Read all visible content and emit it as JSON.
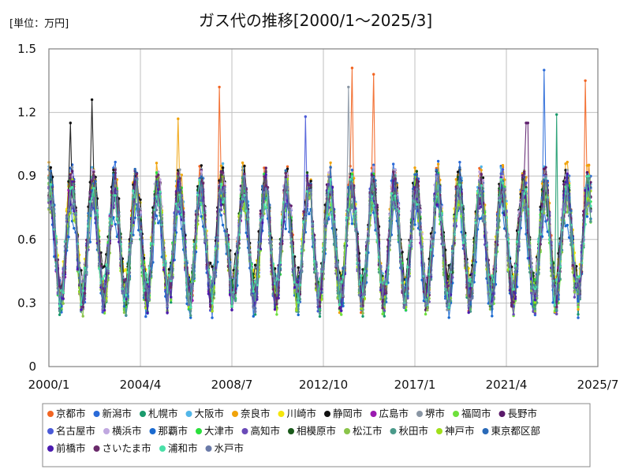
{
  "chart_data": {
    "type": "line",
    "title": "ガス代の推移[2000/1～2025/3]",
    "unit_label": "[単位：万円]",
    "x_range": [
      "2000/1",
      "2025/3"
    ],
    "x_ticks": [
      "2000/1",
      "2004/4",
      "2008/7",
      "2012/10",
      "2017/1",
      "2021/4",
      "2025/7"
    ],
    "y_ticks": [
      "0",
      "0.3",
      "0.6",
      "0.9",
      "1.2",
      "1.5"
    ],
    "ylim": [
      0,
      1.5
    ],
    "grid": true,
    "legend_position": "bottom",
    "series": [
      {
        "name": "京都市",
        "color": "#f26522",
        "base": 0.6,
        "amp": 0.28,
        "phase": 0.2,
        "peaks": [
          [
            2007.9,
            1.32
          ],
          [
            2014.1,
            1.41
          ],
          [
            2015.1,
            1.38
          ],
          [
            2024.9,
            1.35
          ]
        ]
      },
      {
        "name": "新潟市",
        "color": "#2a6ad8",
        "base": 0.6,
        "amp": 0.3,
        "phase": 0.5,
        "peaks": [
          [
            2023.0,
            1.4
          ]
        ]
      },
      {
        "name": "札幌市",
        "color": "#1a9a6c",
        "base": 0.58,
        "amp": 0.27,
        "phase": 0.8,
        "peaks": [
          [
            2023.6,
            1.19
          ]
        ]
      },
      {
        "name": "大阪市",
        "color": "#52b6e8",
        "base": 0.62,
        "amp": 0.27,
        "phase": 1.1,
        "peaks": []
      },
      {
        "name": "奈良市",
        "color": "#f0a30a",
        "base": 0.61,
        "amp": 0.29,
        "phase": 1.4,
        "peaks": [
          [
            2006.0,
            1.17
          ]
        ]
      },
      {
        "name": "川崎市",
        "color": "#f5e60a",
        "base": 0.62,
        "amp": 0.24,
        "phase": 1.7,
        "peaks": []
      },
      {
        "name": "静岡市",
        "color": "#111111",
        "base": 0.64,
        "amp": 0.24,
        "phase": 2.0,
        "peaks": [
          [
            2002.0,
            1.26
          ],
          [
            2001.0,
            1.15
          ]
        ]
      },
      {
        "name": "広島市",
        "color": "#9a1ab0",
        "base": 0.58,
        "amp": 0.26,
        "phase": 2.3,
        "peaks": []
      },
      {
        "name": "堺市",
        "color": "#8a96a4",
        "base": 0.6,
        "amp": 0.27,
        "phase": 2.6,
        "peaks": [
          [
            2013.9,
            1.32
          ]
        ]
      },
      {
        "name": "福岡市",
        "color": "#6ee03c",
        "base": 0.56,
        "amp": 0.26,
        "phase": 2.9,
        "peaks": []
      },
      {
        "name": "長野市",
        "color": "#5a1a6a",
        "base": 0.6,
        "amp": 0.27,
        "phase": 3.2,
        "peaks": [
          [
            2022.2,
            1.15
          ]
        ]
      },
      {
        "name": "名古屋市",
        "color": "#4a5ad8",
        "base": 0.59,
        "amp": 0.27,
        "phase": 3.5,
        "peaks": [
          [
            2011.9,
            1.18
          ]
        ]
      },
      {
        "name": "横浜市",
        "color": "#c0a8e0",
        "base": 0.61,
        "amp": 0.26,
        "phase": 3.8,
        "peaks": []
      },
      {
        "name": "那覇市",
        "color": "#1a6ad0",
        "base": 0.52,
        "amp": 0.22,
        "phase": 4.1,
        "peaks": []
      },
      {
        "name": "大津市",
        "color": "#2ae03c",
        "base": 0.59,
        "amp": 0.26,
        "phase": 4.4,
        "peaks": []
      },
      {
        "name": "高知市",
        "color": "#6a4ab8",
        "base": 0.57,
        "amp": 0.25,
        "phase": 4.7,
        "peaks": []
      },
      {
        "name": "相模原市",
        "color": "#1a5a1a",
        "base": 0.6,
        "amp": 0.25,
        "phase": 5.0,
        "peaks": []
      },
      {
        "name": "松江市",
        "color": "#8ac44a",
        "base": 0.56,
        "amp": 0.25,
        "phase": 5.3,
        "peaks": []
      },
      {
        "name": "秋田市",
        "color": "#4a9a8a",
        "base": 0.57,
        "amp": 0.26,
        "phase": 5.6,
        "peaks": []
      },
      {
        "name": "神戸市",
        "color": "#a0e01a",
        "base": 0.58,
        "amp": 0.25,
        "phase": 5.9,
        "peaks": []
      },
      {
        "name": "東京都区部",
        "color": "#2a6ab8",
        "base": 0.6,
        "amp": 0.27,
        "phase": 6.2,
        "peaks": []
      },
      {
        "name": "前橋市",
        "color": "#4a1ab0",
        "base": 0.58,
        "amp": 0.26,
        "phase": 6.5,
        "peaks": []
      },
      {
        "name": "さいたま市",
        "color": "#6a2a6a",
        "base": 0.6,
        "amp": 0.26,
        "phase": 6.8,
        "peaks": []
      },
      {
        "name": "浦和市",
        "color": "#4ae0a8",
        "base": 0.59,
        "amp": 0.24,
        "phase": 7.1,
        "peaks": []
      },
      {
        "name": "水戸市",
        "color": "#6a7aa8",
        "base": 0.58,
        "amp": 0.25,
        "phase": 7.4,
        "peaks": []
      }
    ]
  }
}
